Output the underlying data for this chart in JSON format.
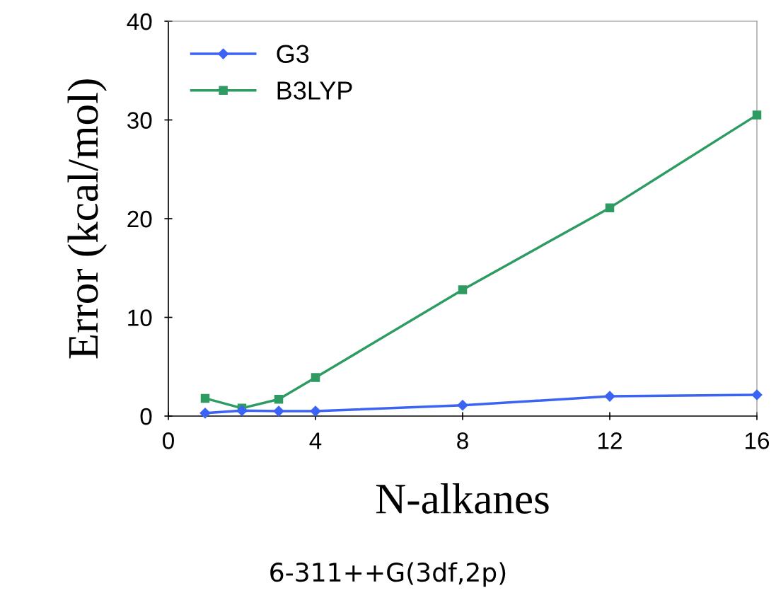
{
  "chart_data": {
    "type": "line",
    "xlabel": "N-alkanes",
    "ylabel": "Error (kcal/mol)",
    "annotations": [
      "6-311++G(3df,2p)"
    ],
    "x": [
      1,
      2,
      3,
      4,
      8,
      12,
      16
    ],
    "series": [
      {
        "name": "G3",
        "color": "#3b64f5",
        "marker": "diamond",
        "values": [
          0.3,
          0.55,
          0.5,
          0.5,
          1.1,
          2.0,
          2.15
        ]
      },
      {
        "name": "B3LYP",
        "color": "#2e9c62",
        "marker": "square",
        "values": [
          1.8,
          0.8,
          1.7,
          3.9,
          12.8,
          21.1,
          30.5
        ]
      }
    ],
    "xlim": [
      0,
      16
    ],
    "xticks": [
      0,
      4,
      8,
      12,
      16
    ],
    "ylim": [
      0,
      40
    ],
    "yticks": [
      0,
      10,
      20,
      30,
      40
    ],
    "grid": false,
    "legend": "top left",
    "line_style": "solid"
  }
}
